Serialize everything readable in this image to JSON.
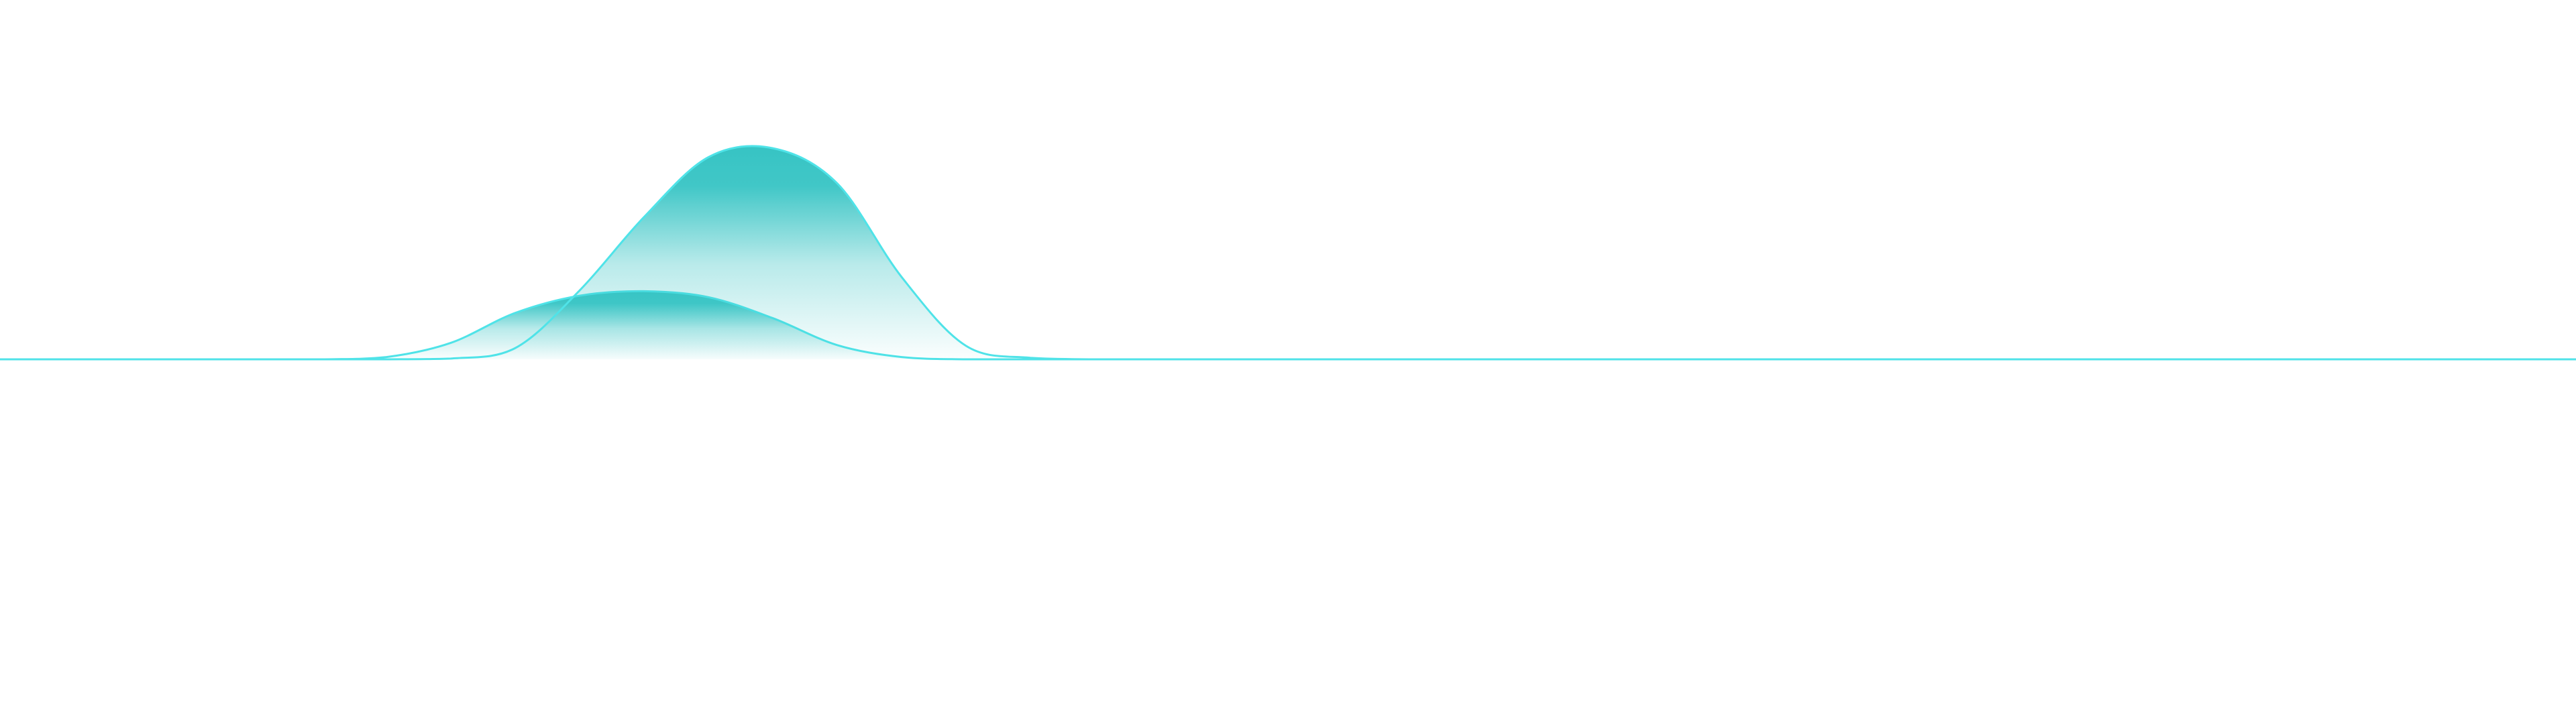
{
  "chart_data": {
    "type": "area",
    "title": "",
    "xlabel": "",
    "ylabel": "",
    "x": [
      0,
      1,
      2,
      3,
      4,
      5,
      6,
      7,
      8,
      9,
      10,
      11,
      12,
      13,
      14,
      15,
      16,
      17,
      18,
      19,
      20,
      21,
      22,
      23,
      24,
      25,
      26,
      27,
      28,
      29,
      30,
      31,
      32,
      33,
      34,
      35,
      36,
      37,
      38,
      39,
      40
    ],
    "xlim": [
      0,
      40
    ],
    "ylim": [
      0,
      480
    ],
    "grid": false,
    "legend": "none",
    "colors": {
      "line": "#4fe3e8",
      "fill": "#37c4c4",
      "background": "#ffffff"
    },
    "series": [
      {
        "values": [
          0,
          0,
          0,
          0,
          0,
          0,
          3,
          22,
          62,
          85,
          91,
          83,
          55,
          19,
          3,
          0,
          0,
          0,
          0,
          0,
          0,
          0,
          0,
          0,
          0,
          0,
          0,
          0,
          0,
          0,
          0,
          0,
          0,
          0,
          0,
          0,
          0,
          0,
          0,
          0,
          0
        ]
      },
      {
        "values": [
          0,
          0,
          0,
          0,
          0,
          0,
          0,
          1,
          15,
          92,
          190,
          270,
          282,
          235,
          110,
          18,
          2,
          0,
          0,
          0,
          0,
          0,
          0,
          0,
          0,
          0,
          0,
          0,
          0,
          0,
          0,
          0,
          0,
          0,
          0,
          0,
          0,
          0,
          0,
          0,
          0
        ]
      }
    ]
  }
}
